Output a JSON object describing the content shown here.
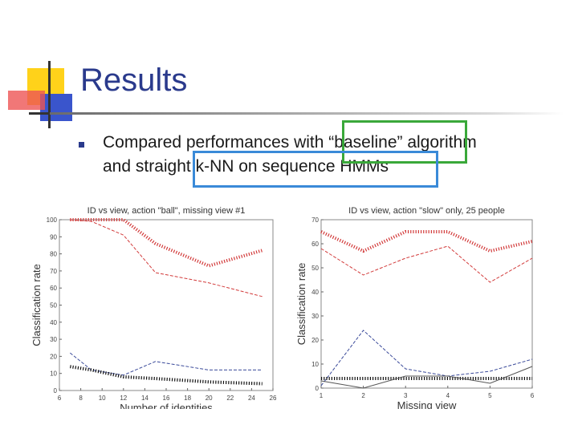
{
  "slide": {
    "title": "Results",
    "bullet": {
      "line1": "Compared performances with “baseline” algorithm",
      "line2": "and straight k-NN on sequence HMMs"
    }
  },
  "colors": {
    "title": "#2a3a8c",
    "highlight_green": "#3aa83a",
    "highlight_blue": "#3a8ad8",
    "red_series": "#d23a3a",
    "blue_series": "#3a4a9a",
    "black_series": "#111111"
  },
  "chart_data": [
    {
      "type": "line",
      "title": "ID vs view, action \"ball\", missing view #1",
      "xlabel": "Number of identities",
      "ylabel": "Classification rate",
      "xlim": [
        6,
        26
      ],
      "ylim": [
        0,
        100
      ],
      "xticks": [
        6,
        8,
        10,
        12,
        14,
        16,
        18,
        20,
        22,
        24,
        26
      ],
      "yticks": [
        0,
        10,
        20,
        30,
        40,
        50,
        60,
        70,
        80,
        90,
        100
      ],
      "grid": false,
      "series": [
        {
          "color": "#d23a3a",
          "style": "dotted-thick",
          "x": [
            7,
            9,
            12,
            15,
            20,
            25
          ],
          "y": [
            100,
            100,
            100,
            86,
            73,
            82
          ]
        },
        {
          "color": "#d23a3a",
          "style": "dashed",
          "x": [
            7,
            9,
            12,
            15,
            20,
            25
          ],
          "y": [
            100,
            99,
            91,
            69,
            63,
            55
          ]
        },
        {
          "color": "#3a4a9a",
          "style": "dashed",
          "x": [
            7,
            9,
            12,
            15,
            20,
            25
          ],
          "y": [
            22,
            12,
            9,
            17,
            12,
            12
          ]
        },
        {
          "color": "#111111",
          "style": "dotted-thick",
          "x": [
            7,
            9,
            12,
            15,
            20,
            25
          ],
          "y": [
            14,
            12,
            8,
            7,
            5,
            4
          ]
        }
      ]
    },
    {
      "type": "line",
      "title": "ID vs view, action \"slow\" only, 25 people",
      "xlabel": "Missing view",
      "ylabel": "Classification rate",
      "xlim": [
        1,
        6
      ],
      "ylim": [
        0,
        70
      ],
      "xticks": [
        1,
        2,
        3,
        4,
        5,
        6
      ],
      "yticks": [
        0,
        10,
        20,
        30,
        40,
        50,
        60,
        70
      ],
      "grid": false,
      "series": [
        {
          "color": "#d23a3a",
          "style": "dotted-thick",
          "x": [
            1,
            2,
            3,
            4,
            5,
            6
          ],
          "y": [
            65,
            57,
            65,
            65,
            57,
            61
          ]
        },
        {
          "color": "#d23a3a",
          "style": "dashed",
          "x": [
            1,
            2,
            3,
            4,
            5,
            6
          ],
          "y": [
            58,
            47,
            54,
            59,
            44,
            54
          ]
        },
        {
          "color": "#3a4a9a",
          "style": "dashed",
          "x": [
            1,
            2,
            3,
            4,
            5,
            6
          ],
          "y": [
            1,
            24,
            8,
            5,
            7,
            12
          ]
        },
        {
          "color": "#111111",
          "style": "dotted-thick",
          "x": [
            1,
            2,
            3,
            4,
            5,
            6
          ],
          "y": [
            4,
            4,
            4,
            4,
            4,
            4
          ]
        },
        {
          "color": "#555555",
          "style": "solid",
          "x": [
            1,
            2,
            3,
            4,
            5,
            6
          ],
          "y": [
            3,
            0,
            5,
            5,
            2,
            9
          ]
        }
      ]
    }
  ]
}
